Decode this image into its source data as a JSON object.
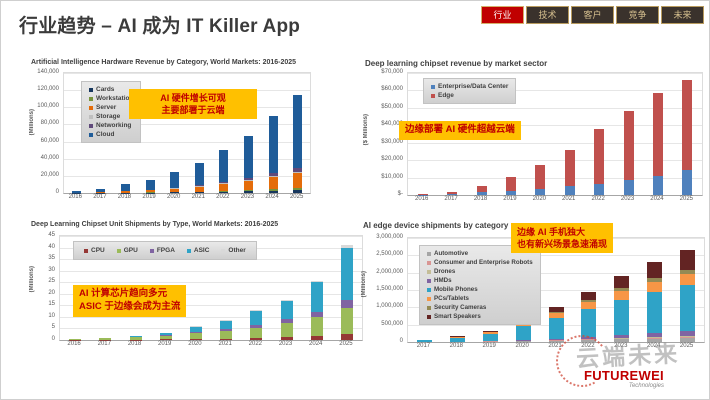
{
  "header": {
    "title": "行业趋势 – AI 成为 IT Killer App"
  },
  "nav_tabs": [
    {
      "label": "行业",
      "active": true
    },
    {
      "label": "技术",
      "active": false
    },
    {
      "label": "客户",
      "active": false
    },
    {
      "label": "竞争",
      "active": false
    },
    {
      "label": "未来",
      "active": false
    }
  ],
  "callouts": {
    "a": [
      "AI 硬件增长可观",
      "主要部署于云端"
    ],
    "b": [
      "边缘部署 AI 硬件超越云端"
    ],
    "c": [
      "AI 计算芯片趋向多元",
      "ASIC 于边缘会成为主流"
    ],
    "d": [
      "边缘 AI 手机独大",
      "也有新兴场景急速涌现"
    ]
  },
  "watermark": {
    "seal_text": "云端未来",
    "logo_text": "FUTUREWEI",
    "logo_sub": "Technologies"
  },
  "chart_data": [
    {
      "type": "bar",
      "stacked": true,
      "title": "Artificial Intelligence Hardware Revenue by Category, World Markets: 2016-2025",
      "ylabel": "(Millions)",
      "ymax": 140000,
      "yticks": [
        "140,000",
        "120,000",
        "100,000",
        "80,000",
        "60,000",
        "40,000",
        "20,000",
        "0"
      ],
      "categories": [
        "2016",
        "2017",
        "2018",
        "2019",
        "2020",
        "2021",
        "2022",
        "2023",
        "2024",
        "2025"
      ],
      "legend_position": "upper-left-vertical",
      "series": [
        {
          "name": "Cards",
          "color": "#17375E",
          "values": [
            100,
            150,
            300,
            500,
            700,
            1000,
            1500,
            2000,
            2800,
            3500
          ]
        },
        {
          "name": "Workstation",
          "color": "#77933C",
          "values": [
            50,
            100,
            200,
            300,
            500,
            700,
            1000,
            1400,
            1900,
            2300
          ]
        },
        {
          "name": "Server",
          "color": "#E46C0A",
          "values": [
            300,
            800,
            1500,
            2500,
            3800,
            5500,
            8000,
            11000,
            14000,
            17000
          ]
        },
        {
          "name": "Storage",
          "color": "#BFBFBF",
          "values": [
            20,
            50,
            100,
            200,
            300,
            500,
            700,
            1000,
            1300,
            1700
          ]
        },
        {
          "name": "Networking",
          "color": "#604A7B",
          "values": [
            30,
            100,
            300,
            500,
            900,
            1300,
            1800,
            2600,
            3500,
            4500
          ]
        },
        {
          "name": "Cloud",
          "color": "#1F5C99",
          "values": [
            1500,
            3900,
            7600,
            11500,
            17800,
            26000,
            37000,
            48000,
            66500,
            85000
          ]
        }
      ]
    },
    {
      "type": "bar",
      "stacked": true,
      "title": "Deep learning chipset revenue by market sector",
      "ylabel": "($ Millions)",
      "ymax": 70000,
      "yticks": [
        "$70,000",
        "$60,000",
        "$50,000",
        "$40,000",
        "$30,000",
        "$20,000",
        "$10,000",
        "$-"
      ],
      "categories": [
        "2016",
        "2017",
        "2018",
        "2019",
        "2020",
        "2021",
        "2022",
        "2023",
        "2024",
        "2025"
      ],
      "legend_position": "upper-left-vertical",
      "series": [
        {
          "name": "Enterprise/Data Center",
          "color": "#4F81BD",
          "values": [
            200,
            600,
            1800,
            2200,
            3500,
            5000,
            6500,
            8500,
            11000,
            14500
          ]
        },
        {
          "name": "Edge",
          "color": "#C0504D",
          "values": [
            200,
            900,
            3200,
            8300,
            14000,
            21000,
            31500,
            39500,
            47500,
            51500
          ]
        }
      ]
    },
    {
      "type": "bar",
      "stacked": true,
      "title": "Deep Learning Chipset Unit Shipments by Type, World Markets: 2016-2025",
      "ylabel": "(Millions)",
      "ymax": 45,
      "yticks": [
        "45",
        "40",
        "35",
        "30",
        "25",
        "20",
        "15",
        "10",
        "5",
        "0"
      ],
      "categories": [
        "2016",
        "2017",
        "2018",
        "2019",
        "2020",
        "2021",
        "2022",
        "2023",
        "2024",
        "2025"
      ],
      "legend_position": "top-horizontal",
      "series": [
        {
          "name": "CPU",
          "color": "#953735",
          "values": [
            0.05,
            0.1,
            0.15,
            0.25,
            0.4,
            0.6,
            0.9,
            1.3,
            1.8,
            2.5
          ]
        },
        {
          "name": "GPU",
          "color": "#9BBB59",
          "values": [
            0.2,
            0.6,
            1.0,
            1.6,
            2.5,
            3.2,
            4.5,
            6.2,
            8.0,
            11.5
          ]
        },
        {
          "name": "FPGA",
          "color": "#8064A2",
          "values": [
            0.02,
            0.1,
            0.2,
            0.4,
            0.7,
            0.9,
            1.3,
            1.8,
            2.4,
            3.5
          ]
        },
        {
          "name": "ASIC",
          "color": "#2FA3C7",
          "values": [
            0.03,
            0.15,
            0.3,
            0.9,
            2.2,
            3.6,
            6.0,
            7.8,
            12.8,
            22.5
          ]
        },
        {
          "name": "Other",
          "color": "#D9D9D9",
          "values": [
            0,
            0.05,
            0.05,
            0.05,
            0.2,
            0.2,
            0.3,
            0.4,
            0.5,
            1.0
          ]
        }
      ]
    },
    {
      "type": "bar",
      "stacked": true,
      "title": "AI edge device shipments by category",
      "ylabel": "(Millions)",
      "ymax": 3000000,
      "yticks": [
        "3,000,000",
        "2,500,000",
        "2,000,000",
        "1,500,000",
        "1,000,000",
        "500,000",
        "0"
      ],
      "categories": [
        "2017",
        "2018",
        "2019",
        "2020",
        "2021",
        "2022",
        "2023",
        "2024",
        "2025"
      ],
      "legend_position": "left-vertical",
      "series": [
        {
          "name": "Automotive",
          "color": "#A6A6A6",
          "values": [
            2000,
            5000,
            10000,
            20000,
            35000,
            55000,
            75000,
            90000,
            105000
          ]
        },
        {
          "name": "Consumer and Enterprise Robots",
          "color": "#D99694",
          "values": [
            1000,
            2000,
            5000,
            8000,
            12000,
            18000,
            25000,
            32000,
            40000
          ]
        },
        {
          "name": "Drones",
          "color": "#C4BD97",
          "values": [
            1000,
            3000,
            5000,
            8000,
            12000,
            16000,
            20000,
            25000,
            30000
          ]
        },
        {
          "name": "HMDs",
          "color": "#8064A2",
          "values": [
            2000,
            5000,
            10000,
            20000,
            35000,
            55000,
            80000,
            105000,
            130000
          ]
        },
        {
          "name": "Mobile Phones",
          "color": "#2FA3C7",
          "values": [
            40000,
            110000,
            210000,
            400000,
            590000,
            800000,
            1020000,
            1200000,
            1330000
          ]
        },
        {
          "name": "PCs/Tablets",
          "color": "#F79646",
          "values": [
            8000,
            25000,
            50000,
            100000,
            150000,
            200000,
            250000,
            290000,
            330000
          ]
        },
        {
          "name": "Security Cameras",
          "color": "#948A54",
          "values": [
            2000,
            5000,
            10000,
            24000,
            41000,
            56000,
            80000,
            98000,
            115000
          ]
        },
        {
          "name": "Smart Speakers",
          "color": "#632423",
          "values": [
            4000,
            15000,
            30000,
            70000,
            125000,
            230000,
            350000,
            460000,
            570000
          ]
        }
      ]
    }
  ]
}
